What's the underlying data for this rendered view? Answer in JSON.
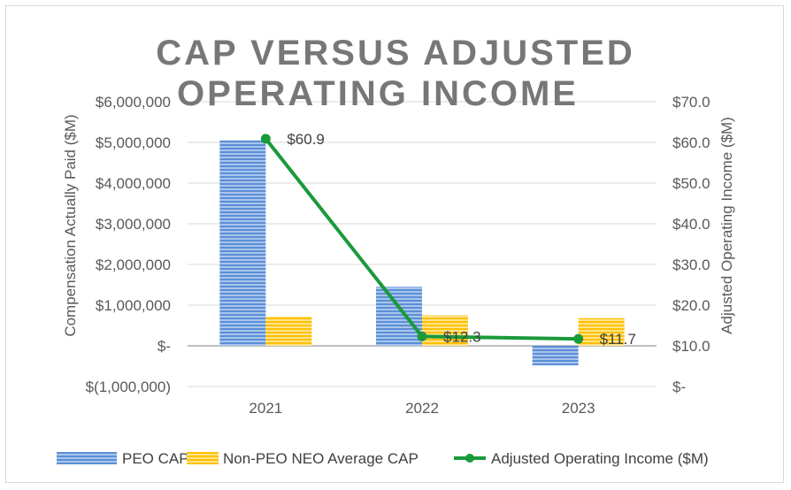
{
  "chart_data": {
    "type": "bar+line",
    "title_lines": [
      "CAP VERSUS ADJUSTED",
      "OPERATING INCOME"
    ],
    "categories": [
      "2021",
      "2022",
      "2023"
    ],
    "left_axis": {
      "label": "Compensation Actually Paid ($M)",
      "ylim": [
        -1000000,
        6000000
      ],
      "ticks": [
        6000000,
        5000000,
        4000000,
        3000000,
        2000000,
        1000000,
        0,
        -1000000
      ],
      "tick_labels": [
        "$6,000,000",
        "$5,000,000",
        "$4,000,000",
        "$3,000,000",
        "$2,000,000",
        "$1,000,000",
        "$-",
        "$(1,000,000)"
      ]
    },
    "right_axis": {
      "label": "Adjusted Operating Income ($M)",
      "ylim": [
        0,
        70
      ],
      "ticks": [
        70,
        60,
        50,
        40,
        30,
        20,
        10,
        0
      ],
      "tick_labels": [
        "$70.0",
        "$60.0",
        "$50.0",
        "$40.0",
        "$30.0",
        "$20.0",
        "$10.0",
        "$-"
      ]
    },
    "series": [
      {
        "name": "PEO CAP",
        "type": "bar",
        "axis": "left",
        "color": "#5b8fd6",
        "values": [
          5050000,
          1450000,
          -480000
        ]
      },
      {
        "name": "Non-PEO NEO Average CAP",
        "type": "bar",
        "axis": "left",
        "color": "#ffc000",
        "values": [
          720000,
          750000,
          680000
        ]
      },
      {
        "name": "Adjusted Operating Income ($M)",
        "type": "line",
        "axis": "right",
        "color": "#1a9a3a",
        "values": [
          60.9,
          12.3,
          11.7
        ],
        "data_labels": [
          "$60.9",
          "$12.3",
          "$11.7"
        ]
      }
    ],
    "legend_position": "bottom",
    "grid": true
  }
}
